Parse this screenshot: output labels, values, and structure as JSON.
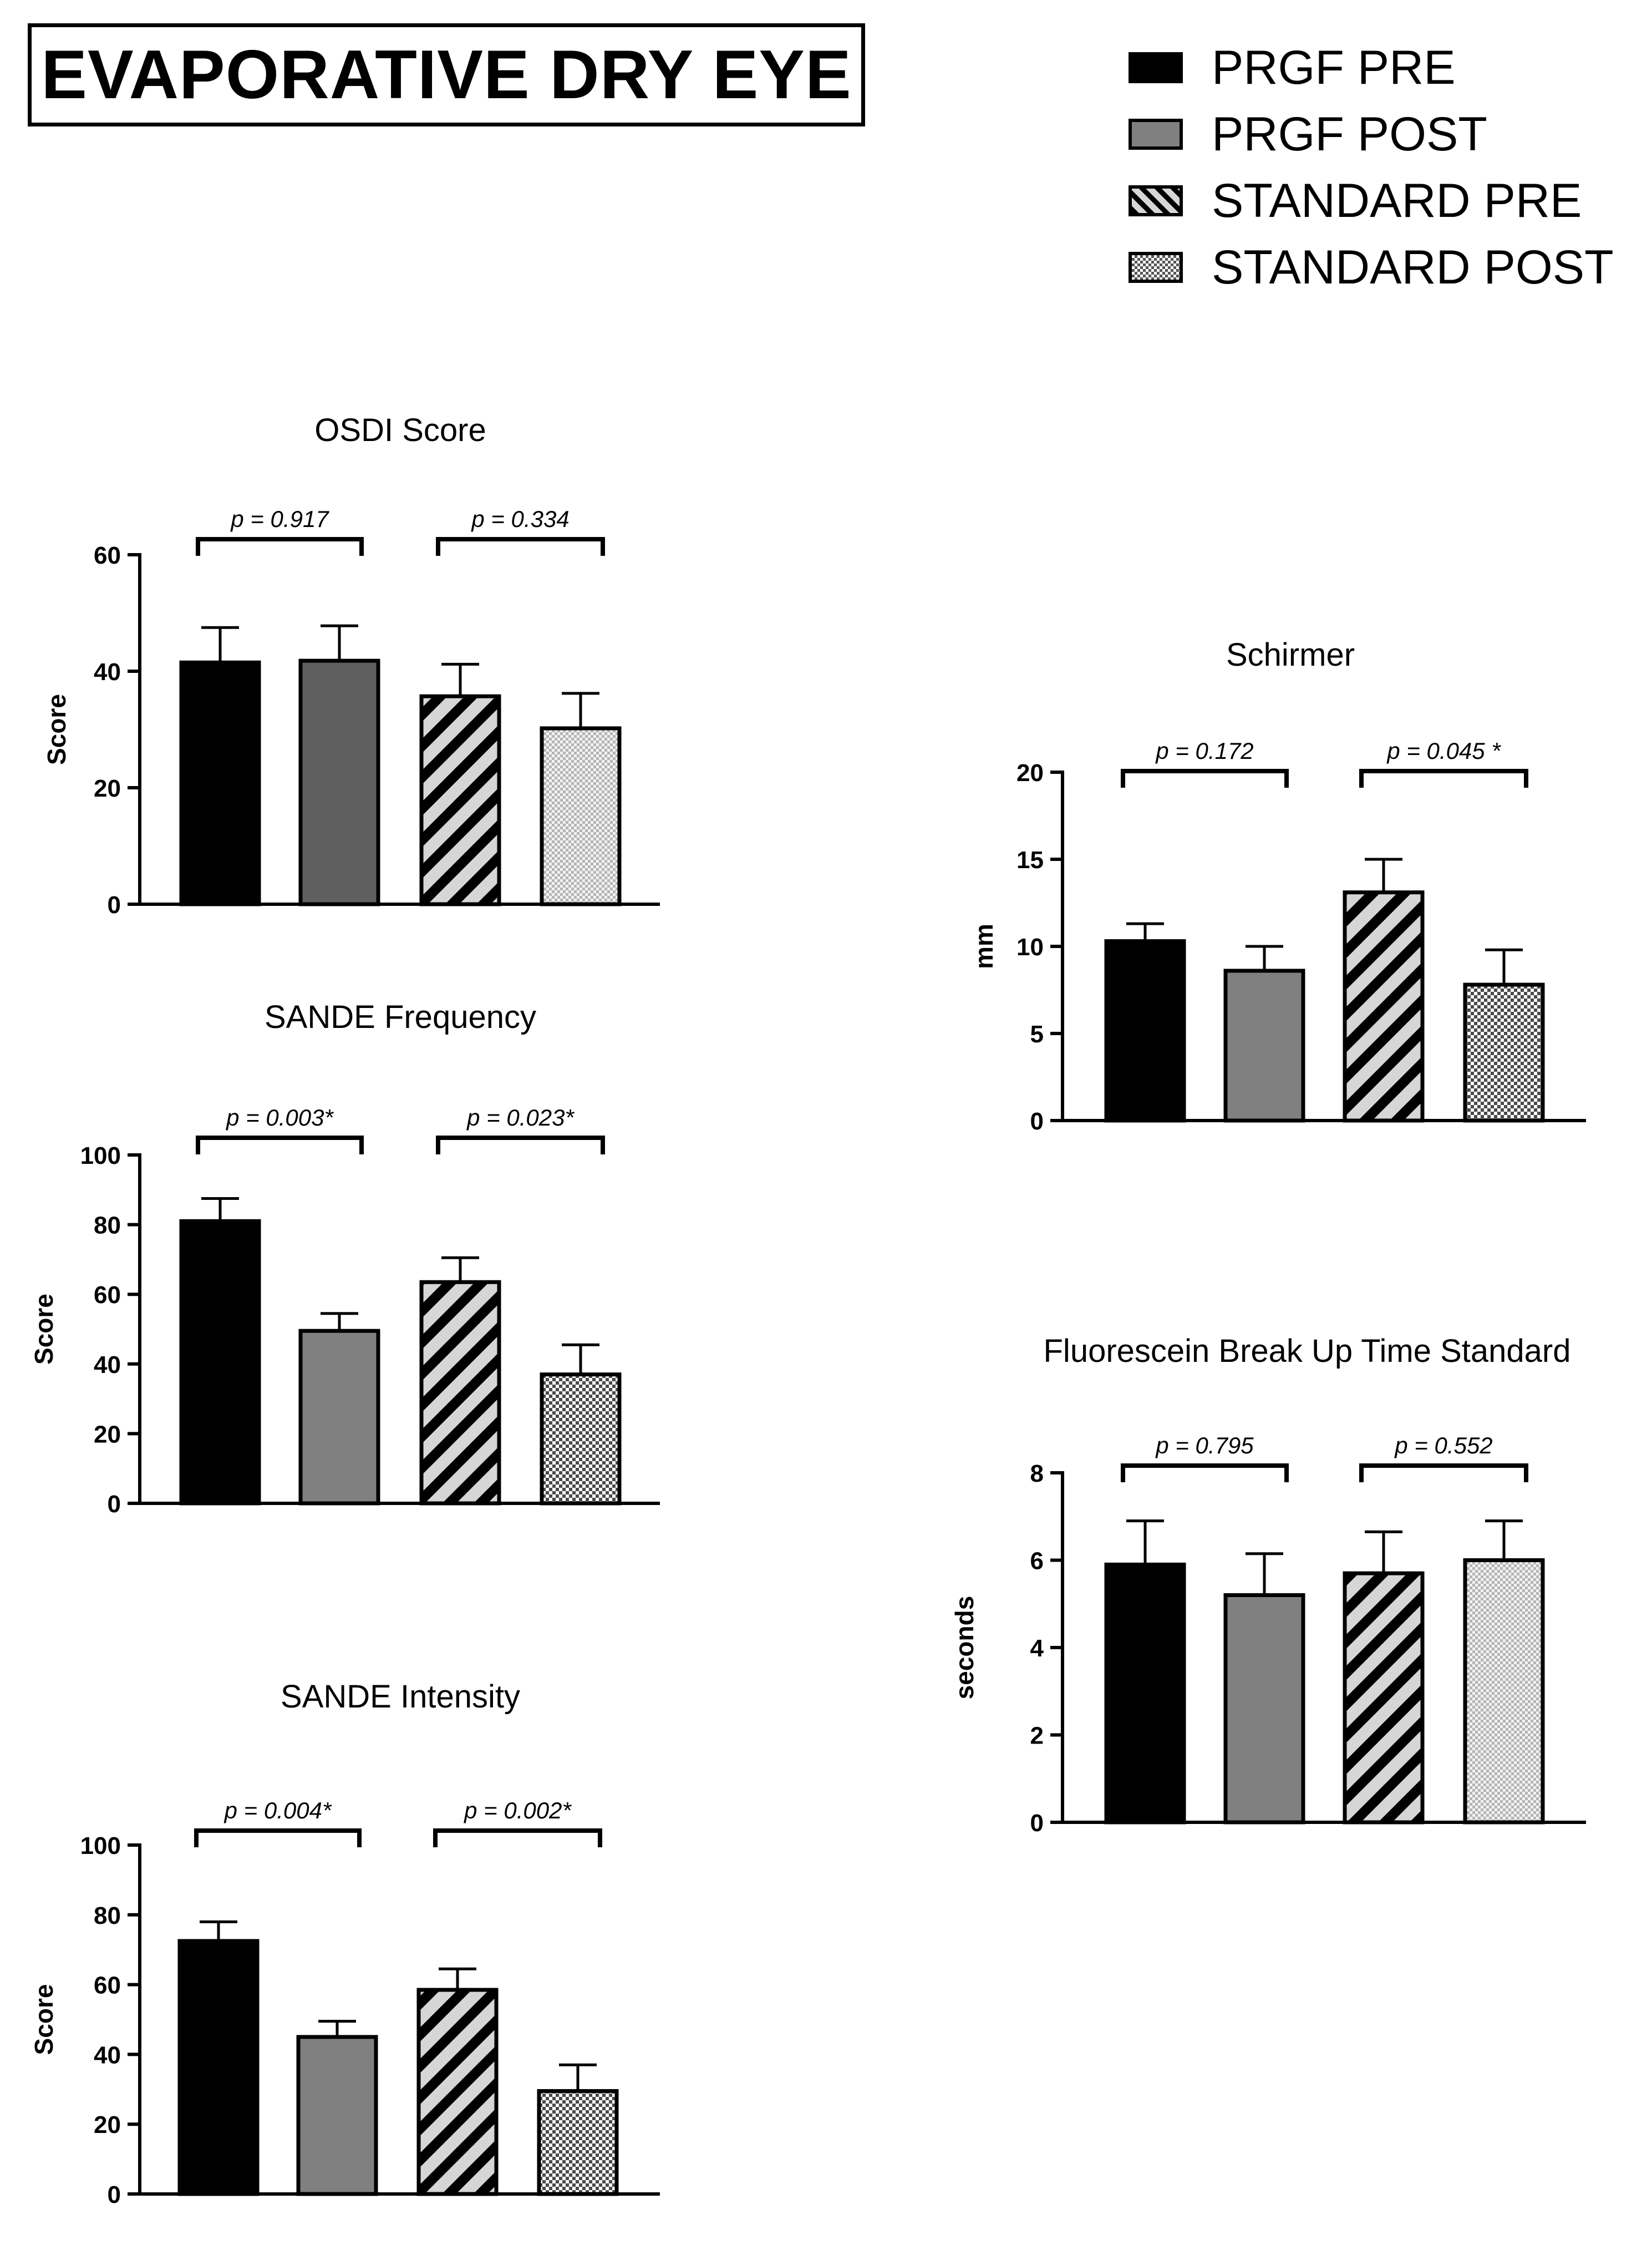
{
  "figure_title": "EVAPORATIVE DRY EYE",
  "legend": [
    {
      "label": "PRGF PRE",
      "pattern": "solid-black"
    },
    {
      "label": "PRGF POST",
      "pattern": "solid-gray"
    },
    {
      "label": "STANDARD PRE",
      "pattern": "diagonal-stripes"
    },
    {
      "label": "STANDARD POST",
      "pattern": "checkered"
    }
  ],
  "colors": {
    "black": "#000000",
    "dark_gray": "#5f5f5f",
    "gray": "#808080",
    "stripe_light": "#d6d6d6"
  },
  "chart_data": [
    {
      "id": "osdi",
      "type": "bar",
      "title": "OSDI Score",
      "ylabel": "Score",
      "ylim": [
        0,
        60
      ],
      "yticks": [
        0,
        20,
        40,
        60
      ],
      "categories": [
        "PRGF PRE",
        "PRGF POST",
        "STANDARD PRE",
        "STANDARD POST"
      ],
      "values": [
        41.5,
        41.8,
        35.7,
        30.2
      ],
      "errors": [
        6,
        6,
        5.5,
        6
      ],
      "patterns": [
        "solid-black",
        "solid-darkgray",
        "diagonal-stripes",
        "dotted"
      ],
      "comparisons": [
        {
          "from": 0,
          "to": 1,
          "label": "p = 0.917"
        },
        {
          "from": 2,
          "to": 3,
          "label": "p = 0.334"
        }
      ]
    },
    {
      "id": "sande-frequency",
      "type": "bar",
      "title": "SANDE Frequency",
      "ylabel": "Score",
      "ylim": [
        0,
        100
      ],
      "yticks": [
        0,
        20,
        40,
        60,
        80,
        100
      ],
      "categories": [
        "PRGF PRE",
        "PRGF POST",
        "STANDARD PRE",
        "STANDARD POST"
      ],
      "values": [
        81,
        49.5,
        63.5,
        37
      ],
      "errors": [
        6.5,
        5,
        7,
        8.5
      ],
      "patterns": [
        "solid-black",
        "solid-gray",
        "diagonal-stripes",
        "checkered"
      ],
      "comparisons": [
        {
          "from": 0,
          "to": 1,
          "label": "p = 0.003*"
        },
        {
          "from": 2,
          "to": 3,
          "label": "p = 0.023*"
        }
      ]
    },
    {
      "id": "sande-intensity",
      "type": "bar",
      "title": "SANDE Intensity",
      "ylabel": "Score",
      "ylim": [
        0,
        100
      ],
      "yticks": [
        0,
        20,
        40,
        60,
        80,
        100
      ],
      "categories": [
        "PRGF PRE",
        "PRGF POST",
        "STANDARD PRE",
        "STANDARD POST"
      ],
      "values": [
        72.5,
        45,
        58.5,
        29.5
      ],
      "errors": [
        5.5,
        4.5,
        6,
        7.5
      ],
      "patterns": [
        "solid-black",
        "solid-gray",
        "diagonal-stripes",
        "checkered"
      ],
      "comparisons": [
        {
          "from": 0,
          "to": 1,
          "label": "p = 0.004*"
        },
        {
          "from": 2,
          "to": 3,
          "label": "p = 0.002*"
        }
      ]
    },
    {
      "id": "schirmer",
      "type": "bar",
      "title": "Schirmer",
      "ylabel": "mm",
      "ylim": [
        0,
        20
      ],
      "yticks": [
        0,
        5,
        10,
        15,
        20
      ],
      "categories": [
        "PRGF PRE",
        "PRGF POST",
        "STANDARD PRE",
        "STANDARD POST"
      ],
      "values": [
        10.3,
        8.6,
        13.1,
        7.8
      ],
      "errors": [
        1,
        1.4,
        1.9,
        2
      ],
      "patterns": [
        "solid-black",
        "solid-gray",
        "diagonal-stripes",
        "checkered"
      ],
      "comparisons": [
        {
          "from": 0,
          "to": 1,
          "label": "p = 0.172"
        },
        {
          "from": 2,
          "to": 3,
          "label": "p = 0.045 *"
        }
      ]
    },
    {
      "id": "fbut",
      "type": "bar",
      "title": "Fluorescein Break Up Time Standard",
      "ylabel": "seconds",
      "ylim": [
        0,
        8
      ],
      "yticks": [
        0,
        2,
        4,
        6,
        8
      ],
      "categories": [
        "PRGF PRE",
        "PRGF POST",
        "STANDARD PRE",
        "STANDARD POST"
      ],
      "values": [
        5.9,
        5.2,
        5.7,
        6
      ],
      "errors": [
        1,
        0.95,
        0.95,
        0.9
      ],
      "patterns": [
        "solid-black",
        "solid-gray",
        "diagonal-stripes",
        "dotted"
      ],
      "comparisons": [
        {
          "from": 0,
          "to": 1,
          "label": "p = 0.795"
        },
        {
          "from": 2,
          "to": 3,
          "label": "p = 0.552"
        }
      ]
    }
  ]
}
